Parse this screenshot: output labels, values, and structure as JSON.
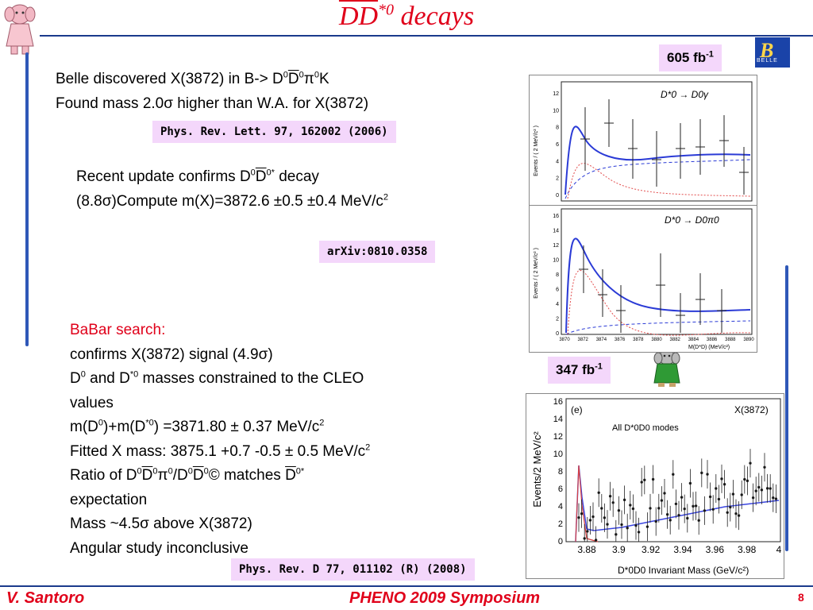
{
  "title": {
    "main": "DD",
    "sup": "*0",
    "rest": " decays"
  },
  "lumi_belle": {
    "value": "605 fb",
    "sup": "-1"
  },
  "lumi_babar": {
    "value": "347 fb",
    "sup": "-1"
  },
  "belle_text": {
    "line1_a": "Belle discovered X(3872) in B->  D",
    "line1_b": "0",
    "line1_c": "D",
    "line1_d": "0",
    "line1_e": "π",
    "line1_f": "0",
    "line1_g": "K",
    "line2": "Found mass 2.0σ higher than W.A. for X(3872)"
  },
  "ref1": "Phys. Rev. Lett. 97, 162002 (2006)",
  "update_text": {
    "line1_a": "Recent update confirms D",
    "line1_b": "0",
    "line1_c": "D",
    "line1_d": "0*",
    "line1_e": " decay",
    "line2_a": "(8.8σ)Compute m(X)=3872.6 ±0.5 ±0.4 MeV/c",
    "line2_b": "2"
  },
  "ref2": "arXiv:0810.0358",
  "babar_text": {
    "heading": "BaBar search:",
    "l1": "confirms X(3872) signal (4.9σ)",
    "l2_a": "D",
    "l2_b": "0",
    "l2_c": " and D",
    "l2_d": "*0",
    "l2_e": " masses constrained to the CLEO",
    "l3": "values",
    "l4_a": "m(D",
    "l4_b": "0",
    "l4_c": ")+m(D",
    "l4_d": "*0",
    "l4_e": ") =3871.80 ± 0.37 MeV/c",
    "l4_f": "2",
    "l5_a": "Fitted X mass: 3875.1 +0.7 -0.5 ± 0.5 MeV/c",
    "l5_b": "2",
    "l6_a": "Ratio of D",
    "l6_b": "0",
    "l6_c": "D",
    "l6_d": "0",
    "l6_e": "π",
    "l6_f": "0",
    "l6_g": "/D",
    "l6_h": "0",
    "l6_i": "D",
    "l6_j": "0",
    "l6_k": "© matches ",
    "l6_l": "D",
    "l6_m": "0*",
    "l7": "expectation",
    "l8": "Mass ~4.5σ above X(3872)",
    "l9": "Angular study inconclusive"
  },
  "ref3": "Phys. Rev. D 77, 011102 (R) (2008)",
  "footer": {
    "author": "V. Santoro",
    "event": "PHENO 2009 Symposium",
    "page": "8"
  },
  "belle_logo_text": "BELLE",
  "plot_top": {
    "label": "D*0 → D0γ",
    "ylabel": "Events / ( 2 MeV/c² )",
    "yticks": [
      "0",
      "2",
      "4",
      "6",
      "8",
      "10",
      "12"
    ]
  },
  "plot_mid": {
    "label": "D*0 → D0π0",
    "ylabel": "Events / ( 2 MeV/c² )",
    "yticks": [
      "0",
      "2",
      "4",
      "6",
      "8",
      "10",
      "12",
      "14",
      "16"
    ],
    "xticks": [
      "3870",
      "3872",
      "3874",
      "3876",
      "3878",
      "3880",
      "3882",
      "3884",
      "3886",
      "3888",
      "3890"
    ],
    "xlabel": "M(D*D) (MeV/c²)"
  },
  "plot_babar": {
    "panel": "(e)",
    "tag": "X(3872)",
    "modes": "All D*0D0 modes",
    "ylabel": "Events/2 MeV/c²",
    "yticks": [
      "0",
      "2",
      "4",
      "6",
      "8",
      "10",
      "12",
      "14",
      "16"
    ],
    "xticks": [
      "3.88",
      "3.9",
      "3.92",
      "3.94",
      "3.96",
      "3.98",
      "4"
    ],
    "xlabel": "D*0D0 Invariant Mass (GeV/c²)"
  },
  "colors": {
    "accent": "#e0001a",
    "rule": "#1b3a8c",
    "refbg": "#f4d7fb"
  }
}
